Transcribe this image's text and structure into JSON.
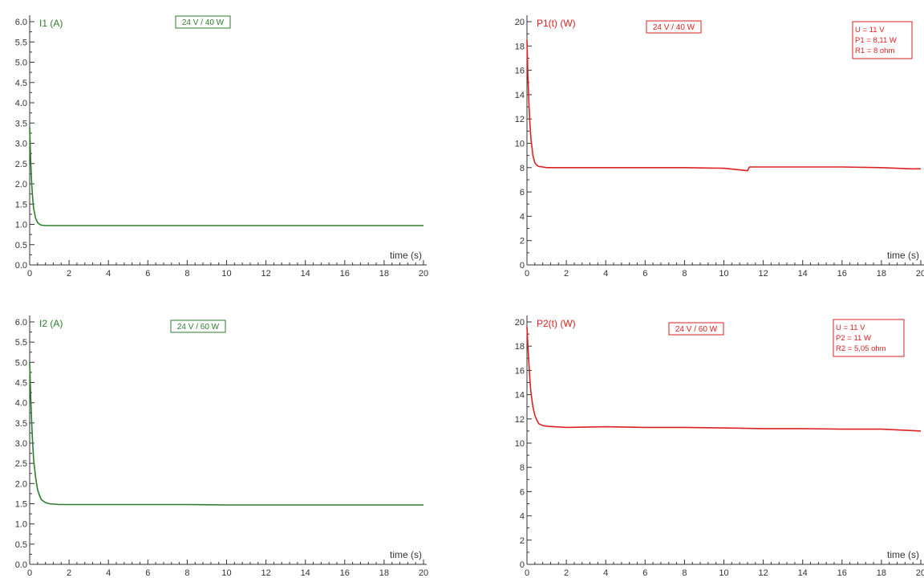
{
  "chart_data": [
    {
      "type": "line",
      "ylabel": "I1 (A)",
      "xlabel": "time (s)",
      "badge": "24 V / 40 W",
      "info": [],
      "color": "#2e7d2e",
      "xlim": [
        0,
        20
      ],
      "ylim": [
        0,
        6.0
      ],
      "x_ticks": [
        "0",
        "2",
        "4",
        "6",
        "8",
        "10",
        "12",
        "14",
        "16",
        "18",
        "20"
      ],
      "y_ticks": [
        "0.0",
        "0.5",
        "1.0",
        "1.5",
        "2.0",
        "2.5",
        "3.0",
        "3.5",
        "4.0",
        "4.5",
        "5.0",
        "5.5",
        "6.0"
      ],
      "series": [
        {
          "x": [
            0,
            0.05,
            0.1,
            0.15,
            0.2,
            0.3,
            0.4,
            0.5,
            0.6,
            0.8,
            1.0,
            1.5,
            2,
            4,
            6,
            8,
            10,
            12,
            14,
            16,
            18,
            20
          ],
          "y": [
            3.4,
            2.6,
            2.0,
            1.65,
            1.4,
            1.15,
            1.05,
            1.0,
            0.98,
            0.97,
            0.97,
            0.97,
            0.97,
            0.97,
            0.97,
            0.97,
            0.97,
            0.97,
            0.97,
            0.97,
            0.97,
            0.97
          ]
        }
      ]
    },
    {
      "type": "line",
      "ylabel": "P1(t) (W)",
      "xlabel": "time (s)",
      "badge": "24 V / 40 W",
      "info": [
        "U = 11 V",
        "P1 = 8,11 W",
        "R1 = 8 ohm"
      ],
      "color": "#dd2222",
      "xlim": [
        0,
        20
      ],
      "ylim": [
        0,
        20
      ],
      "x_ticks": [
        "0",
        "2",
        "4",
        "6",
        "8",
        "10",
        "12",
        "14",
        "16",
        "18",
        "20"
      ],
      "y_ticks": [
        "0",
        "2",
        "4",
        "6",
        "8",
        "10",
        "12",
        "14",
        "16",
        "18",
        "20"
      ],
      "series": [
        {
          "x": [
            0,
            0.05,
            0.1,
            0.15,
            0.2,
            0.3,
            0.4,
            0.5,
            0.6,
            0.8,
            1.0,
            2,
            4,
            6,
            8,
            10,
            11.2,
            11.3,
            12,
            14,
            16,
            18,
            19.5,
            20
          ],
          "y": [
            18.5,
            15.5,
            13.2,
            11.6,
            10.4,
            9.0,
            8.4,
            8.2,
            8.1,
            8.05,
            8.0,
            8.0,
            8.0,
            8.0,
            8.0,
            7.95,
            7.75,
            8.05,
            8.05,
            8.05,
            8.05,
            8.0,
            7.9,
            7.9
          ]
        }
      ]
    },
    {
      "type": "line",
      "ylabel": "I2 (A)",
      "xlabel": "time (s)",
      "badge": "24 V / 60 W",
      "info": [],
      "color": "#2e7d2e",
      "xlim": [
        0,
        20
      ],
      "ylim": [
        0,
        6.0
      ],
      "x_ticks": [
        "0",
        "2",
        "4",
        "6",
        "8",
        "10",
        "12",
        "14",
        "16",
        "18",
        "20"
      ],
      "y_ticks": [
        "0.0",
        "0.5",
        "1.0",
        "1.5",
        "2.0",
        "2.5",
        "3.0",
        "3.5",
        "4.0",
        "4.5",
        "5.0",
        "5.5",
        "6.0"
      ],
      "series": [
        {
          "x": [
            0,
            0.05,
            0.1,
            0.15,
            0.2,
            0.3,
            0.4,
            0.5,
            0.6,
            0.8,
            1.0,
            1.5,
            2,
            4,
            6,
            8,
            10,
            12,
            14,
            16,
            18,
            20
          ],
          "y": [
            5.0,
            4.2,
            3.5,
            3.0,
            2.6,
            2.15,
            1.85,
            1.7,
            1.6,
            1.53,
            1.5,
            1.48,
            1.48,
            1.48,
            1.48,
            1.48,
            1.47,
            1.47,
            1.47,
            1.47,
            1.47,
            1.47
          ]
        }
      ]
    },
    {
      "type": "line",
      "ylabel": "P2(t) (W)",
      "xlabel": "time (s)",
      "badge": "24 V / 60 W",
      "info": [
        "U = 11 V",
        "P2 = 11 W",
        "R2 = 5,05 ohm"
      ],
      "color": "#dd2222",
      "xlim": [
        0,
        20
      ],
      "ylim": [
        0,
        20
      ],
      "x_ticks": [
        "0",
        "2",
        "4",
        "6",
        "8",
        "10",
        "12",
        "14",
        "16",
        "18",
        "20"
      ],
      "y_ticks": [
        "0",
        "2",
        "4",
        "6",
        "8",
        "10",
        "12",
        "14",
        "16",
        "18",
        "20"
      ],
      "series": [
        {
          "x": [
            0,
            0.05,
            0.1,
            0.15,
            0.2,
            0.3,
            0.4,
            0.5,
            0.6,
            0.8,
            1.0,
            2,
            4,
            6,
            8,
            10,
            12,
            14,
            16,
            18,
            20
          ],
          "y": [
            19.6,
            18.0,
            16.5,
            15.2,
            14.2,
            13.0,
            12.3,
            11.9,
            11.6,
            11.45,
            11.4,
            11.3,
            11.35,
            11.3,
            11.3,
            11.25,
            11.2,
            11.2,
            11.15,
            11.15,
            11.0
          ]
        }
      ]
    }
  ]
}
